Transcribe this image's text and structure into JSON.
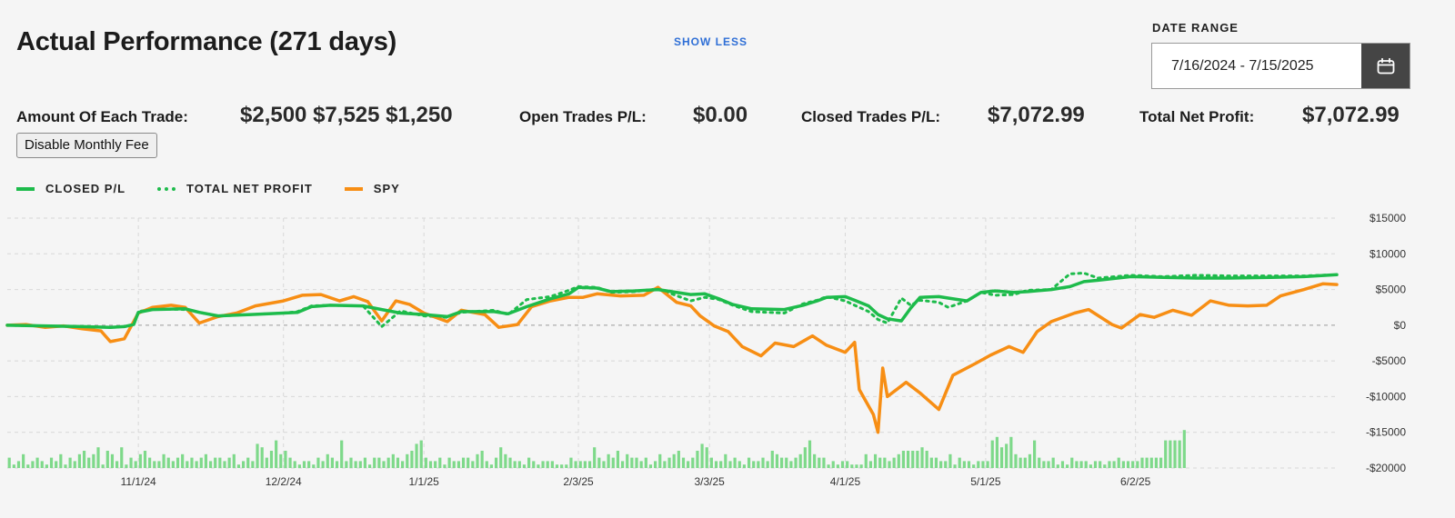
{
  "header": {
    "title": "Actual Performance (271 days)",
    "show_less": "SHOW LESS"
  },
  "date_range": {
    "label": "DATE RANGE",
    "value": "7/16/2024 - 7/15/2025"
  },
  "stats": {
    "amount_label": "Amount Of Each Trade:",
    "amount_value": "$2,500 $7,525 $1,250",
    "open_label": "Open Trades P/L:",
    "open_value": "$0.00",
    "closed_label": "Closed Trades P/L:",
    "closed_value": "$7,072.99",
    "total_label": "Total Net Profit:",
    "total_value": "$7,072.99"
  },
  "fee_button": "Disable Monthly Fee",
  "colors": {
    "green": "#1dbb4b",
    "orange": "#f78e14",
    "bar": "#7ed98a"
  },
  "icons": {
    "calendar": "calendar-icon"
  },
  "chart_data": {
    "type": "line",
    "legend": [
      "CLOSED P/L",
      "TOTAL NET PROFIT",
      "SPY"
    ],
    "legend_position": "top-left",
    "grid": true,
    "ylim": [
      -20000,
      15000
    ],
    "y_ticks": [
      15000,
      10000,
      5000,
      0,
      -5000,
      -10000,
      -15000,
      -20000
    ],
    "y_tick_labels": [
      "$15000",
      "$10000",
      "$5000",
      "$0",
      "-$5000",
      "-$10000",
      "-$15000",
      "-$20000"
    ],
    "x_ticks": [
      "11/1/24",
      "12/2/24",
      "1/1/25",
      "2/3/25",
      "3/3/25",
      "4/1/25",
      "5/1/25",
      "6/2/25"
    ],
    "x_range": [
      "10/4/24",
      "7/15/25"
    ],
    "series": [
      {
        "name": "CLOSED P/L",
        "style": "solid",
        "points": [
          [
            "10/4/24",
            0
          ],
          [
            "10/12/24",
            -100
          ],
          [
            "10/20/24",
            -200
          ],
          [
            "10/26/24",
            -300
          ],
          [
            "10/29/24",
            -200
          ],
          [
            "10/31/24",
            100
          ],
          [
            "11/1/24",
            1800
          ],
          [
            "11/4/24",
            2200
          ],
          [
            "11/11/24",
            2300
          ],
          [
            "11/14/24",
            1800
          ],
          [
            "11/18/24",
            1300
          ],
          [
            "11/25/24",
            1500
          ],
          [
            "12/2/24",
            1700
          ],
          [
            "12/5/24",
            1800
          ],
          [
            "12/8/24",
            2600
          ],
          [
            "12/12/24",
            2800
          ],
          [
            "12/19/24",
            2700
          ],
          [
            "12/23/24",
            2200
          ],
          [
            "12/27/24",
            1700
          ],
          [
            "1/1/25",
            1500
          ],
          [
            "1/6/25",
            1200
          ],
          [
            "1/9/25",
            1900
          ],
          [
            "1/16/25",
            1900
          ],
          [
            "1/19/25",
            1600
          ],
          [
            "1/23/25",
            2600
          ],
          [
            "1/28/25",
            3700
          ],
          [
            "2/1/25",
            4400
          ],
          [
            "2/3/25",
            5300
          ],
          [
            "2/7/25",
            5200
          ],
          [
            "2/10/25",
            4700
          ],
          [
            "2/15/25",
            4800
          ],
          [
            "2/20/25",
            5000
          ],
          [
            "2/27/25",
            4300
          ],
          [
            "3/2/25",
            4400
          ],
          [
            "3/5/25",
            3700
          ],
          [
            "3/8/25",
            2900
          ],
          [
            "3/12/25",
            2300
          ],
          [
            "3/19/25",
            2200
          ],
          [
            "3/23/25",
            2800
          ],
          [
            "3/26/25",
            3400
          ],
          [
            "3/28/25",
            3900
          ],
          [
            "4/1/25",
            4000
          ],
          [
            "4/3/25",
            3500
          ],
          [
            "4/6/25",
            2700
          ],
          [
            "4/8/25",
            1500
          ],
          [
            "4/10/25",
            900
          ],
          [
            "4/13/25",
            600
          ],
          [
            "4/15/25",
            2400
          ],
          [
            "4/17/25",
            3900
          ],
          [
            "4/21/25",
            4000
          ],
          [
            "4/23/25",
            3800
          ],
          [
            "4/27/25",
            3400
          ],
          [
            "4/30/25",
            4600
          ],
          [
            "5/3/25",
            4800
          ],
          [
            "5/7/25",
            4600
          ],
          [
            "5/10/25",
            4700
          ],
          [
            "5/15/25",
            5000
          ],
          [
            "5/19/25",
            5400
          ],
          [
            "5/22/25",
            6100
          ],
          [
            "5/25/25",
            6300
          ],
          [
            "6/1/25",
            6800
          ],
          [
            "6/8/25",
            6700
          ],
          [
            "6/15/25",
            6600
          ],
          [
            "6/22/25",
            6600
          ],
          [
            "7/1/25",
            6700
          ],
          [
            "7/8/25",
            6800
          ],
          [
            "7/15/25",
            7073
          ]
        ]
      },
      {
        "name": "TOTAL NET PROFIT",
        "style": "dotted",
        "points": [
          [
            "10/4/24",
            0
          ],
          [
            "10/12/24",
            -100
          ],
          [
            "10/20/24",
            -200
          ],
          [
            "10/26/24",
            -300
          ],
          [
            "10/29/24",
            -200
          ],
          [
            "10/31/24",
            100
          ],
          [
            "11/1/24",
            1900
          ],
          [
            "11/4/24",
            2300
          ],
          [
            "11/11/24",
            2200
          ],
          [
            "11/14/24",
            1800
          ],
          [
            "11/18/24",
            1300
          ],
          [
            "11/25/24",
            1500
          ],
          [
            "12/2/24",
            1700
          ],
          [
            "12/5/24",
            1900
          ],
          [
            "12/8/24",
            2700
          ],
          [
            "12/12/24",
            2800
          ],
          [
            "12/19/24",
            2700
          ],
          [
            "12/23/24",
            -200
          ],
          [
            "12/27/24",
            2000
          ],
          [
            "1/1/25",
            1300
          ],
          [
            "1/6/25",
            1100
          ],
          [
            "1/9/25",
            1800
          ],
          [
            "1/16/25",
            2100
          ],
          [
            "1/19/25",
            1500
          ],
          [
            "1/23/25",
            3600
          ],
          [
            "1/28/25",
            4000
          ],
          [
            "2/1/25",
            4900
          ],
          [
            "2/3/25",
            5400
          ],
          [
            "2/7/25",
            5300
          ],
          [
            "2/10/25",
            4600
          ],
          [
            "2/15/25",
            4700
          ],
          [
            "2/20/25",
            5100
          ],
          [
            "2/27/25",
            3400
          ],
          [
            "3/2/25",
            3900
          ],
          [
            "3/5/25",
            3600
          ],
          [
            "3/8/25",
            2800
          ],
          [
            "3/12/25",
            1900
          ],
          [
            "3/19/25",
            1700
          ],
          [
            "3/23/25",
            3000
          ],
          [
            "3/26/25",
            3500
          ],
          [
            "3/28/25",
            4000
          ],
          [
            "4/1/25",
            3400
          ],
          [
            "4/3/25",
            2800
          ],
          [
            "4/6/25",
            1900
          ],
          [
            "4/8/25",
            800
          ],
          [
            "4/10/25",
            300
          ],
          [
            "4/13/25",
            3800
          ],
          [
            "4/15/25",
            2800
          ],
          [
            "4/17/25",
            3500
          ],
          [
            "4/21/25",
            3200
          ],
          [
            "4/23/25",
            2500
          ],
          [
            "4/27/25",
            3400
          ],
          [
            "4/30/25",
            4600
          ],
          [
            "5/3/25",
            4200
          ],
          [
            "5/7/25",
            4300
          ],
          [
            "5/10/25",
            4900
          ],
          [
            "5/15/25",
            5000
          ],
          [
            "5/19/25",
            7200
          ],
          [
            "5/22/25",
            7300
          ],
          [
            "5/25/25",
            6600
          ],
          [
            "6/1/25",
            7000
          ],
          [
            "6/8/25",
            6800
          ],
          [
            "6/15/25",
            7000
          ],
          [
            "6/22/25",
            6900
          ],
          [
            "7/1/25",
            6900
          ],
          [
            "7/8/25",
            6900
          ],
          [
            "7/15/25",
            7073
          ]
        ]
      },
      {
        "name": "SPY",
        "style": "solid",
        "points": [
          [
            "10/4/24",
            0
          ],
          [
            "10/8/24",
            100
          ],
          [
            "10/12/24",
            -300
          ],
          [
            "10/16/24",
            -100
          ],
          [
            "10/20/24",
            -500
          ],
          [
            "10/24/24",
            -800
          ],
          [
            "10/26/24",
            -2300
          ],
          [
            "10/29/24",
            -1900
          ],
          [
            "11/1/24",
            1700
          ],
          [
            "11/4/24",
            2500
          ],
          [
            "11/8/24",
            2800
          ],
          [
            "11/11/24",
            2500
          ],
          [
            "11/14/24",
            300
          ],
          [
            "11/18/24",
            1200
          ],
          [
            "11/22/24",
            1700
          ],
          [
            "11/26/24",
            2700
          ],
          [
            "12/2/24",
            3400
          ],
          [
            "12/6/24",
            4200
          ],
          [
            "12/10/24",
            4300
          ],
          [
            "12/14/24",
            3400
          ],
          [
            "12/17/24",
            4000
          ],
          [
            "12/20/24",
            3300
          ],
          [
            "12/23/24",
            600
          ],
          [
            "12/26/24",
            3400
          ],
          [
            "12/29/24",
            2900
          ],
          [
            "1/1/25",
            1700
          ],
          [
            "1/6/25",
            500
          ],
          [
            "1/9/25",
            2100
          ],
          [
            "1/14/25",
            1500
          ],
          [
            "1/17/25",
            -300
          ],
          [
            "1/21/25",
            100
          ],
          [
            "1/24/25",
            2600
          ],
          [
            "1/28/25",
            3400
          ],
          [
            "2/1/25",
            3900
          ],
          [
            "2/4/25",
            3900
          ],
          [
            "2/7/25",
            4400
          ],
          [
            "2/12/25",
            4100
          ],
          [
            "2/17/25",
            4200
          ],
          [
            "2/20/25",
            5300
          ],
          [
            "2/24/25",
            3200
          ],
          [
            "2/27/25",
            2700
          ],
          [
            "3/1/25",
            1300
          ],
          [
            "3/4/25",
            -100
          ],
          [
            "3/7/25",
            -900
          ],
          [
            "3/10/25",
            -3000
          ],
          [
            "3/14/25",
            -4300
          ],
          [
            "3/17/25",
            -2500
          ],
          [
            "3/21/25",
            -3000
          ],
          [
            "3/25/25",
            -1500
          ],
          [
            "3/28/25",
            -2800
          ],
          [
            "4/1/25",
            -3800
          ],
          [
            "4/3/25",
            -2400
          ],
          [
            "4/4/25",
            -9000
          ],
          [
            "4/7/25",
            -12500
          ],
          [
            "4/8/25",
            -15000
          ],
          [
            "4/9/25",
            -6000
          ],
          [
            "4/10/25",
            -10000
          ],
          [
            "4/14/25",
            -8000
          ],
          [
            "4/17/25",
            -9500
          ],
          [
            "4/21/25",
            -11800
          ],
          [
            "4/24/25",
            -7000
          ],
          [
            "4/29/25",
            -5300
          ],
          [
            "5/2/25",
            -4200
          ],
          [
            "5/6/25",
            -3000
          ],
          [
            "5/9/25",
            -3800
          ],
          [
            "5/12/25",
            -900
          ],
          [
            "5/15/25",
            500
          ],
          [
            "5/20/25",
            1700
          ],
          [
            "5/23/25",
            2200
          ],
          [
            "5/28/25",
            100
          ],
          [
            "5/30/25",
            -400
          ],
          [
            "6/3/25",
            1500
          ],
          [
            "6/6/25",
            1100
          ],
          [
            "6/10/25",
            2100
          ],
          [
            "6/14/25",
            1400
          ],
          [
            "6/18/25",
            3400
          ],
          [
            "6/22/25",
            2800
          ],
          [
            "6/26/25",
            2700
          ],
          [
            "6/30/25",
            2800
          ],
          [
            "7/3/25",
            4100
          ],
          [
            "7/8/25",
            5000
          ],
          [
            "7/12/25",
            5800
          ],
          [
            "7/15/25",
            5700
          ]
        ]
      }
    ],
    "volume_bars": [
      3,
      1,
      2,
      4,
      1,
      2,
      3,
      2,
      1,
      3,
      2,
      4,
      1,
      3,
      2,
      4,
      5,
      3,
      4,
      6,
      1,
      5,
      4,
      2,
      6,
      1,
      3,
      2,
      4,
      5,
      3,
      2,
      2,
      4,
      3,
      2,
      3,
      4,
      2,
      3,
      2,
      3,
      4,
      2,
      3,
      3,
      2,
      3,
      4,
      1,
      2,
      3,
      2,
      7,
      6,
      3,
      5,
      8,
      4,
      5,
      3,
      2,
      1,
      2,
      2,
      1,
      3,
      2,
      4,
      3,
      2,
      8,
      2,
      3,
      2,
      2,
      3,
      1,
      3,
      3,
      2,
      3,
      4,
      3,
      2,
      4,
      5,
      7,
      8,
      3,
      2,
      2,
      3,
      1,
      3,
      2,
      2,
      3,
      3,
      2,
      4,
      5,
      2,
      1,
      3,
      6,
      4,
      3,
      2,
      2,
      1,
      3,
      2,
      1,
      2,
      2,
      2,
      1,
      1,
      1,
      3,
      2,
      2,
      2,
      2,
      6,
      3,
      2,
      4,
      3,
      5,
      2,
      4,
      3,
      3,
      2,
      3,
      1,
      2,
      4,
      2,
      3,
      4,
      5,
      3,
      2,
      3,
      5,
      7,
      6,
      3,
      2,
      2,
      4,
      2,
      3,
      2,
      1,
      3,
      2,
      2,
      3,
      2,
      5,
      4,
      3,
      3,
      2,
      3,
      4,
      6,
      8,
      4,
      3,
      3,
      1,
      2,
      1,
      2,
      2,
      1,
      1,
      1,
      4,
      2,
      4,
      3,
      3,
      2,
      3,
      4,
      5,
      5,
      5,
      5,
      6,
      5,
      3,
      3,
      2,
      2,
      4,
      1,
      3,
      2,
      2,
      1,
      2,
      2,
      2,
      8,
      9,
      6,
      7,
      9,
      4,
      3,
      3,
      4,
      8,
      3,
      2,
      2,
      3,
      1,
      2,
      1,
      3,
      2,
      2,
      2,
      1,
      2,
      2,
      1,
      2,
      2,
      3,
      2,
      2,
      2,
      2,
      3,
      3,
      3,
      3,
      3,
      8,
      8,
      8,
      8,
      11
    ]
  }
}
